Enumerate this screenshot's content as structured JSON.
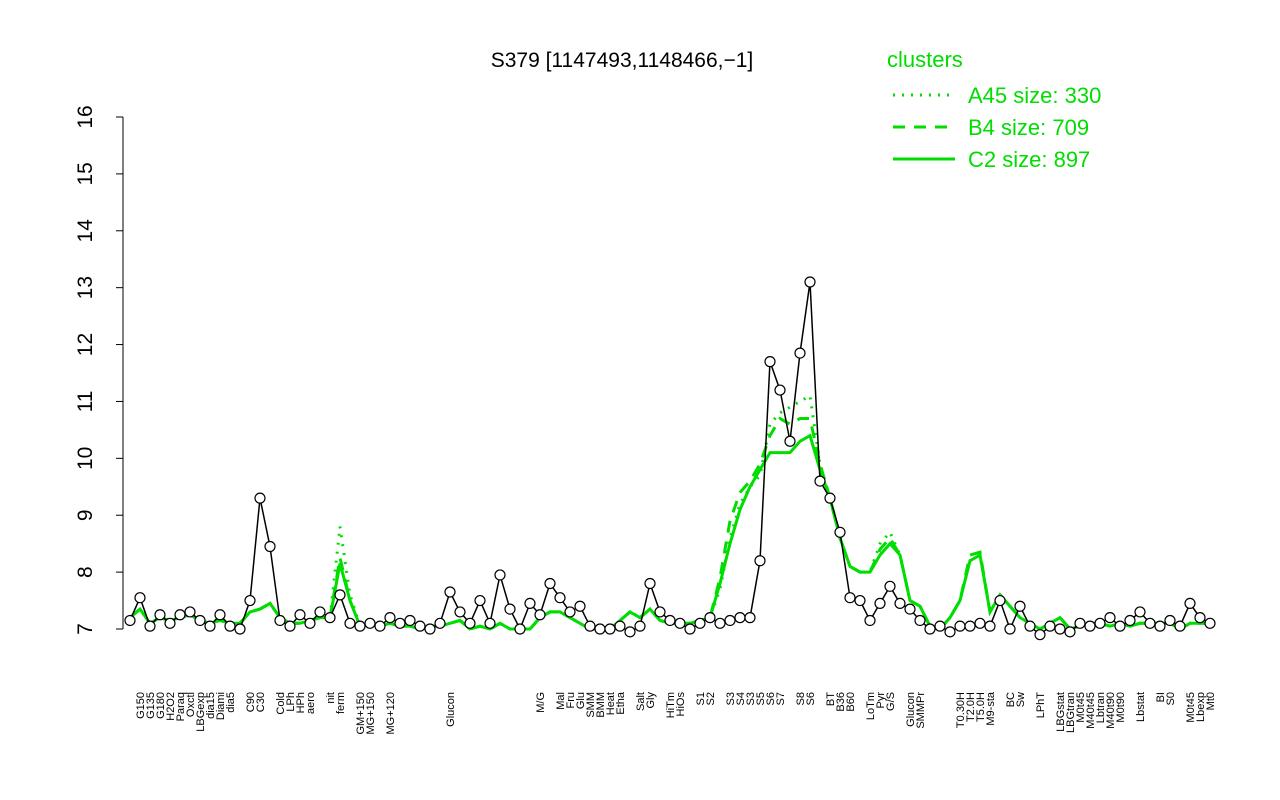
{
  "chart_data": {
    "type": "line",
    "title": "S379 [1147493,1148466,−1]",
    "ylim": [
      7,
      16
    ],
    "yticks": [
      7,
      8,
      9,
      10,
      11,
      12,
      13,
      14,
      15,
      16
    ],
    "legend_title": "clusters",
    "legend_position": "top-right",
    "categories": [
      null,
      "G150",
      "G135",
      "G180",
      "H2O2",
      "Paraq",
      "Oxctl",
      "LBGexp",
      "dia15",
      "Diami",
      "dia5",
      null,
      "C90",
      "C30",
      null,
      "Cold",
      "LPh",
      "HPh",
      "aero",
      null,
      "nit",
      "ferm",
      null,
      "GM+150",
      "MG+150",
      null,
      "MG+120",
      null,
      null,
      null,
      null,
      null,
      "Glucon",
      null,
      null,
      null,
      null,
      null,
      null,
      null,
      null,
      "M/G",
      null,
      "Mal",
      "Fru",
      "Glu",
      "SMM",
      "BMM",
      "Heat",
      "Etha",
      null,
      "Salt",
      "Gly",
      null,
      "HiTm",
      "HiOs",
      null,
      "S1",
      "S2",
      null,
      "S3",
      "S4",
      "S3",
      "S5",
      "S6",
      "S7",
      null,
      "S8",
      "S6",
      null,
      "BT",
      "B36",
      "B60",
      null,
      "LoTm",
      "Pyr",
      "G/S",
      null,
      "Glucon",
      "SMMPr",
      null,
      null,
      null,
      "T0.30H",
      "T2.0H",
      "T5.0H",
      "M9-sta",
      null,
      "BC",
      "Sw",
      null,
      "LPhT",
      null,
      "LBGstat",
      "LBGtran",
      "M0t45",
      "M40t45",
      "Lbtran",
      "M40t90",
      "M0t90",
      null,
      "Lbstat",
      null,
      "BI",
      "S0",
      null,
      "M0t45",
      "Lbexp",
      "Mt0"
    ],
    "points": {
      "color": "#000000",
      "values": [
        7.15,
        7.55,
        7.05,
        7.25,
        7.1,
        7.25,
        7.3,
        7.15,
        7.05,
        7.25,
        7.05,
        7.0,
        7.5,
        9.3,
        8.45,
        7.15,
        7.05,
        7.25,
        7.1,
        7.3,
        7.2,
        7.6,
        7.1,
        7.05,
        7.1,
        7.05,
        7.2,
        7.1,
        7.15,
        7.05,
        7.0,
        7.1,
        7.65,
        7.3,
        7.1,
        7.5,
        7.1,
        7.95,
        7.35,
        7.0,
        7.45,
        7.25,
        7.8,
        7.55,
        7.3,
        7.4,
        7.05,
        7.0,
        7.0,
        7.05,
        6.95,
        7.05,
        7.8,
        7.3,
        7.15,
        7.1,
        7.0,
        7.1,
        7.2,
        7.1,
        7.15,
        7.2,
        7.2,
        8.2,
        11.7,
        11.2,
        10.3,
        11.85,
        13.1,
        9.6,
        9.3,
        8.7,
        7.55,
        7.5,
        7.15,
        7.45,
        7.75,
        7.45,
        7.35,
        7.15,
        7.0,
        7.05,
        6.95,
        7.05,
        7.05,
        7.1,
        7.05,
        7.5,
        7.0,
        7.4,
        7.05,
        6.9,
        7.05,
        7.0,
        6.95,
        7.1,
        7.05,
        7.1,
        7.2,
        7.05,
        7.15,
        7.3,
        7.1,
        7.05,
        7.15,
        7.05,
        7.45,
        7.2,
        7.1
      ]
    },
    "series": [
      {
        "name": "A45 size: 330",
        "color": "#00dd00",
        "dash": "dotted",
        "values": [
          7.2,
          7.35,
          7.1,
          7.2,
          7.15,
          7.2,
          7.25,
          7.15,
          7.1,
          7.15,
          7.1,
          7.1,
          7.3,
          7.35,
          7.45,
          7.2,
          7.1,
          7.1,
          7.15,
          7.2,
          7.2,
          8.8,
          7.6,
          7.05,
          7.1,
          7.05,
          7.1,
          7.05,
          7.05,
          7.0,
          7.05,
          7.05,
          7.1,
          7.15,
          7.0,
          7.05,
          7.0,
          7.1,
          7.0,
          7.0,
          7.0,
          7.2,
          7.3,
          7.3,
          7.2,
          7.1,
          7.0,
          7.0,
          7.0,
          7.15,
          7.3,
          7.2,
          7.35,
          7.15,
          7.1,
          7.1,
          7.1,
          7.15,
          7.2,
          7.7,
          8.6,
          9.2,
          9.5,
          9.7,
          10.6,
          10.8,
          10.9,
          11.0,
          11.1,
          9.9,
          9.3,
          8.6,
          8.1,
          8.0,
          8.0,
          8.5,
          8.7,
          8.3,
          7.5,
          7.4,
          7.05,
          7.0,
          7.2,
          7.5,
          8.2,
          8.3,
          7.3,
          7.6,
          7.4,
          7.2,
          7.1,
          7.0,
          7.1,
          7.2,
          7.0,
          7.05,
          7.1,
          7.1,
          7.05,
          7.1,
          7.05,
          7.1,
          7.1,
          7.1,
          7.1,
          7.0,
          7.1,
          7.1,
          7.1
        ]
      },
      {
        "name": "B4 size: 709",
        "color": "#00dd00",
        "dash": "dashed",
        "values": [
          7.2,
          7.35,
          7.1,
          7.2,
          7.15,
          7.2,
          7.25,
          7.15,
          7.1,
          7.15,
          7.1,
          7.1,
          7.3,
          7.35,
          7.45,
          7.2,
          7.1,
          7.1,
          7.15,
          7.2,
          7.2,
          8.25,
          7.5,
          7.05,
          7.1,
          7.05,
          7.1,
          7.05,
          7.05,
          7.0,
          7.05,
          7.05,
          7.1,
          7.15,
          7.0,
          7.05,
          7.0,
          7.1,
          7.0,
          7.0,
          7.0,
          7.2,
          7.3,
          7.3,
          7.2,
          7.1,
          7.0,
          7.0,
          7.0,
          7.15,
          7.3,
          7.2,
          7.35,
          7.15,
          7.1,
          7.1,
          7.1,
          7.15,
          7.2,
          7.9,
          8.9,
          9.4,
          9.6,
          9.9,
          10.4,
          10.7,
          10.6,
          10.7,
          10.7,
          9.9,
          9.3,
          8.6,
          8.1,
          8.0,
          8.0,
          8.4,
          8.6,
          8.3,
          7.5,
          7.4,
          7.05,
          7.0,
          7.2,
          7.5,
          8.3,
          8.35,
          7.3,
          7.6,
          7.4,
          7.2,
          7.1,
          7.0,
          7.1,
          7.2,
          7.0,
          7.05,
          7.1,
          7.1,
          7.05,
          7.1,
          7.05,
          7.1,
          7.1,
          7.1,
          7.1,
          7.0,
          7.1,
          7.1,
          7.1
        ]
      },
      {
        "name": "C2 size: 897",
        "color": "#00dd00",
        "dash": "solid",
        "values": [
          7.2,
          7.35,
          7.1,
          7.2,
          7.15,
          7.2,
          7.25,
          7.15,
          7.1,
          7.15,
          7.1,
          7.1,
          7.3,
          7.35,
          7.45,
          7.2,
          7.1,
          7.1,
          7.15,
          7.2,
          7.2,
          8.15,
          7.5,
          7.05,
          7.1,
          7.05,
          7.1,
          7.05,
          7.05,
          7.0,
          7.05,
          7.05,
          7.1,
          7.15,
          7.0,
          7.05,
          7.0,
          7.1,
          7.0,
          7.0,
          7.0,
          7.2,
          7.3,
          7.3,
          7.2,
          7.1,
          7.0,
          7.0,
          7.0,
          7.15,
          7.3,
          7.2,
          7.35,
          7.15,
          7.1,
          7.1,
          7.1,
          7.15,
          7.2,
          7.8,
          8.5,
          9.1,
          9.5,
          9.8,
          10.1,
          10.1,
          10.1,
          10.3,
          10.4,
          9.8,
          9.3,
          8.6,
          8.1,
          8.0,
          8.0,
          8.3,
          8.5,
          8.3,
          7.5,
          7.4,
          7.05,
          7.0,
          7.2,
          7.5,
          8.2,
          8.3,
          7.3,
          7.6,
          7.4,
          7.2,
          7.1,
          7.0,
          7.1,
          7.2,
          7.0,
          7.05,
          7.1,
          7.1,
          7.05,
          7.1,
          7.05,
          7.1,
          7.1,
          7.1,
          7.1,
          7.0,
          7.1,
          7.1,
          7.1
        ]
      }
    ]
  }
}
